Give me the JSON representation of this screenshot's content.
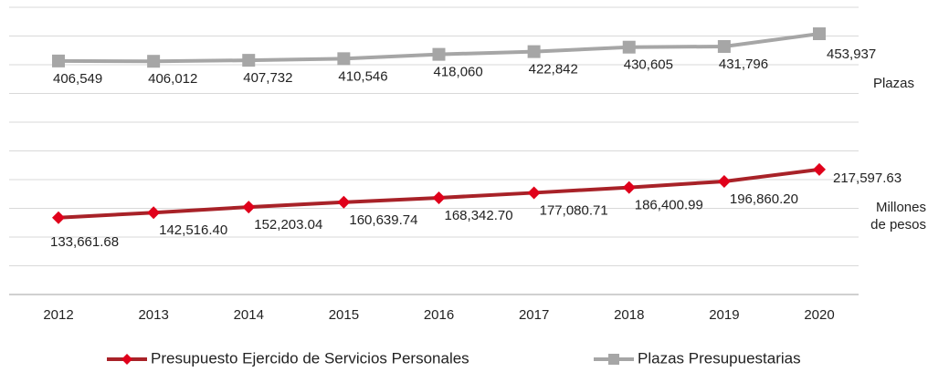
{
  "chart_data": {
    "type": "line",
    "categories": [
      "2012",
      "2013",
      "2014",
      "2015",
      "2016",
      "2017",
      "2018",
      "2019",
      "2020"
    ],
    "ylim": [
      0,
      500000
    ],
    "series": [
      {
        "name": "Presupuesto Ejercido de Servicios Personales",
        "color": "#a82228",
        "marker_color": "#e0001b",
        "marker": "diamond",
        "values": [
          133661.68,
          142516.4,
          152203.04,
          160639.74,
          168342.7,
          177080.71,
          186400.99,
          196860.2,
          217597.63
        ],
        "value_labels": [
          "133,661.68",
          "142,516.40",
          "152,203.04",
          "160,639.74",
          "168,342.70",
          "177,080.71",
          "186,400.99",
          "196,860.20",
          "217,597.63"
        ],
        "unit_label": [
          "Millones",
          "de pesos"
        ]
      },
      {
        "name": "Plazas Presupuestarias",
        "color": "#a6a6a6",
        "marker_color": "#a6a6a6",
        "marker": "square",
        "values": [
          406549,
          406012,
          407732,
          410546,
          418060,
          422842,
          430605,
          431796,
          453937
        ],
        "value_labels": [
          "406,549",
          "406,012",
          "407,732",
          "410,546",
          "418,060",
          "422,842",
          "430,605",
          "431,796",
          "453,937"
        ],
        "unit_label": [
          "Plazas"
        ]
      }
    ]
  }
}
